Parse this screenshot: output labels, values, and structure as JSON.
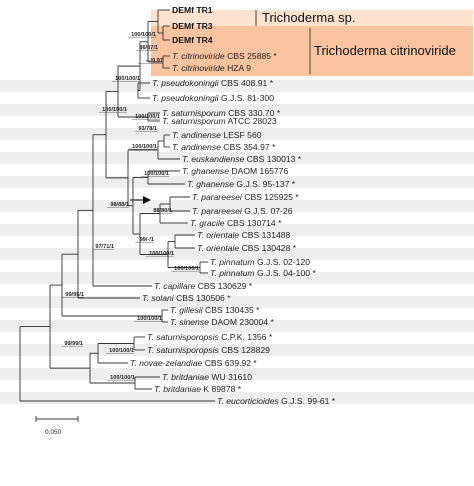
{
  "groups": {
    "sp_label": "Trichoderma sp.",
    "citrinoviride_label": "Trichoderma citrinoviride"
  },
  "taxa": [
    {
      "bold": "DEMf TR1",
      "genus": "",
      "rest": "",
      "star": ""
    },
    {
      "bold": "DEMf TR3",
      "genus": "",
      "rest": "",
      "star": ""
    },
    {
      "bold": "DEMf TR4",
      "genus": "",
      "rest": "",
      "star": ""
    },
    {
      "bold": "",
      "genus": "T. citrinoviride",
      "rest": "CBS 25885",
      "star": "*"
    },
    {
      "bold": "",
      "genus": "T. citrinoviride",
      "rest": "HZA 9",
      "star": ""
    },
    {
      "bold": "",
      "genus": "T. pseudokoningii",
      "rest": "CBS 408.91",
      "star": "*"
    },
    {
      "bold": "",
      "genus": "T. pseudokoningii",
      "rest": "G.J.S. 81-300",
      "star": ""
    },
    {
      "bold": "",
      "genus": "T. saturnisporum",
      "rest": "CBS 330.70",
      "star": "*"
    },
    {
      "bold": "",
      "genus": "T. saturnisporum",
      "rest": "ATCC 28023",
      "star": ""
    },
    {
      "bold": "",
      "genus": "T. andinense",
      "rest": "LESF 560",
      "star": ""
    },
    {
      "bold": "",
      "genus": "T. andinense",
      "rest": "CBS 354.97",
      "star": "*"
    },
    {
      "bold": "",
      "genus": "T. euskandiense",
      "rest": "CBS 130013",
      "star": "*"
    },
    {
      "bold": "",
      "genus": "T. ghanense",
      "rest": "DAOM 165776",
      "star": ""
    },
    {
      "bold": "",
      "genus": "T. ghanense",
      "rest": "G.J.S. 95-137",
      "star": "*"
    },
    {
      "bold": "",
      "genus": "T. parareesei",
      "rest": "CBS 125925",
      "star": "*"
    },
    {
      "bold": "",
      "genus": "T. parareesei",
      "rest": "G.J.S. 07-26",
      "star": ""
    },
    {
      "bold": "",
      "genus": "T. gracile",
      "rest": "CBS 130714",
      "star": "*"
    },
    {
      "bold": "",
      "genus": "T. orientale",
      "rest": "CBS 131488",
      "star": ""
    },
    {
      "bold": "",
      "genus": "T. orientale",
      "rest": "CBS 130428",
      "star": "*"
    },
    {
      "bold": "",
      "genus": "T. pinnatum",
      "rest": "G.J.S. 02-120",
      "star": ""
    },
    {
      "bold": "",
      "genus": "T. pinnatum",
      "rest": "G.J.S. 04-100",
      "star": "*"
    },
    {
      "bold": "",
      "genus": "T. capillare",
      "rest": "CBS 130629",
      "star": "*"
    },
    {
      "bold": "",
      "genus": "T. solani",
      "rest": "CBS 130506",
      "star": "*"
    },
    {
      "bold": "",
      "genus": "T. gillesii",
      "rest": "CBS 130435",
      "star": "*"
    },
    {
      "bold": "",
      "genus": "T. sinense",
      "rest": "DAOM 230004",
      "star": "*"
    },
    {
      "bold": "",
      "genus": "T. saturnisporopsis",
      "rest": "C.P.K. 1356",
      "star": "*"
    },
    {
      "bold": "",
      "genus": "T. saturnisporopsis",
      "rest": "CBS 128829",
      "star": ""
    },
    {
      "bold": "",
      "genus": "T. novae-zelandiae",
      "rest": "CBS 639.92",
      "star": "*"
    },
    {
      "bold": "",
      "genus": "T. britdaniae",
      "rest": "WU 31610",
      "star": ""
    },
    {
      "bold": "",
      "genus": "T. britdaniae",
      "rest": "K 89878",
      "star": "*"
    },
    {
      "bold": "",
      "genus": "T. eucorticioides",
      "rest": "G.J.S. 99-61",
      "star": "*"
    }
  ],
  "supports": [
    "100/100/1",
    "86/87/1",
    "-/-/0.97",
    "100/100/1",
    "100/100/1",
    "100/100/1",
    "93/78/1",
    "100/100/1",
    "100/100/1",
    "98/88/1",
    "88/80/1",
    "99/-/1",
    "100/100/1",
    "100/100/1",
    "97/71/1",
    "99/95/1",
    "100/100/1",
    "99/99/1",
    "100/100/1",
    "100/100/1"
  ],
  "scale_bar": {
    "label": "0.050"
  }
}
